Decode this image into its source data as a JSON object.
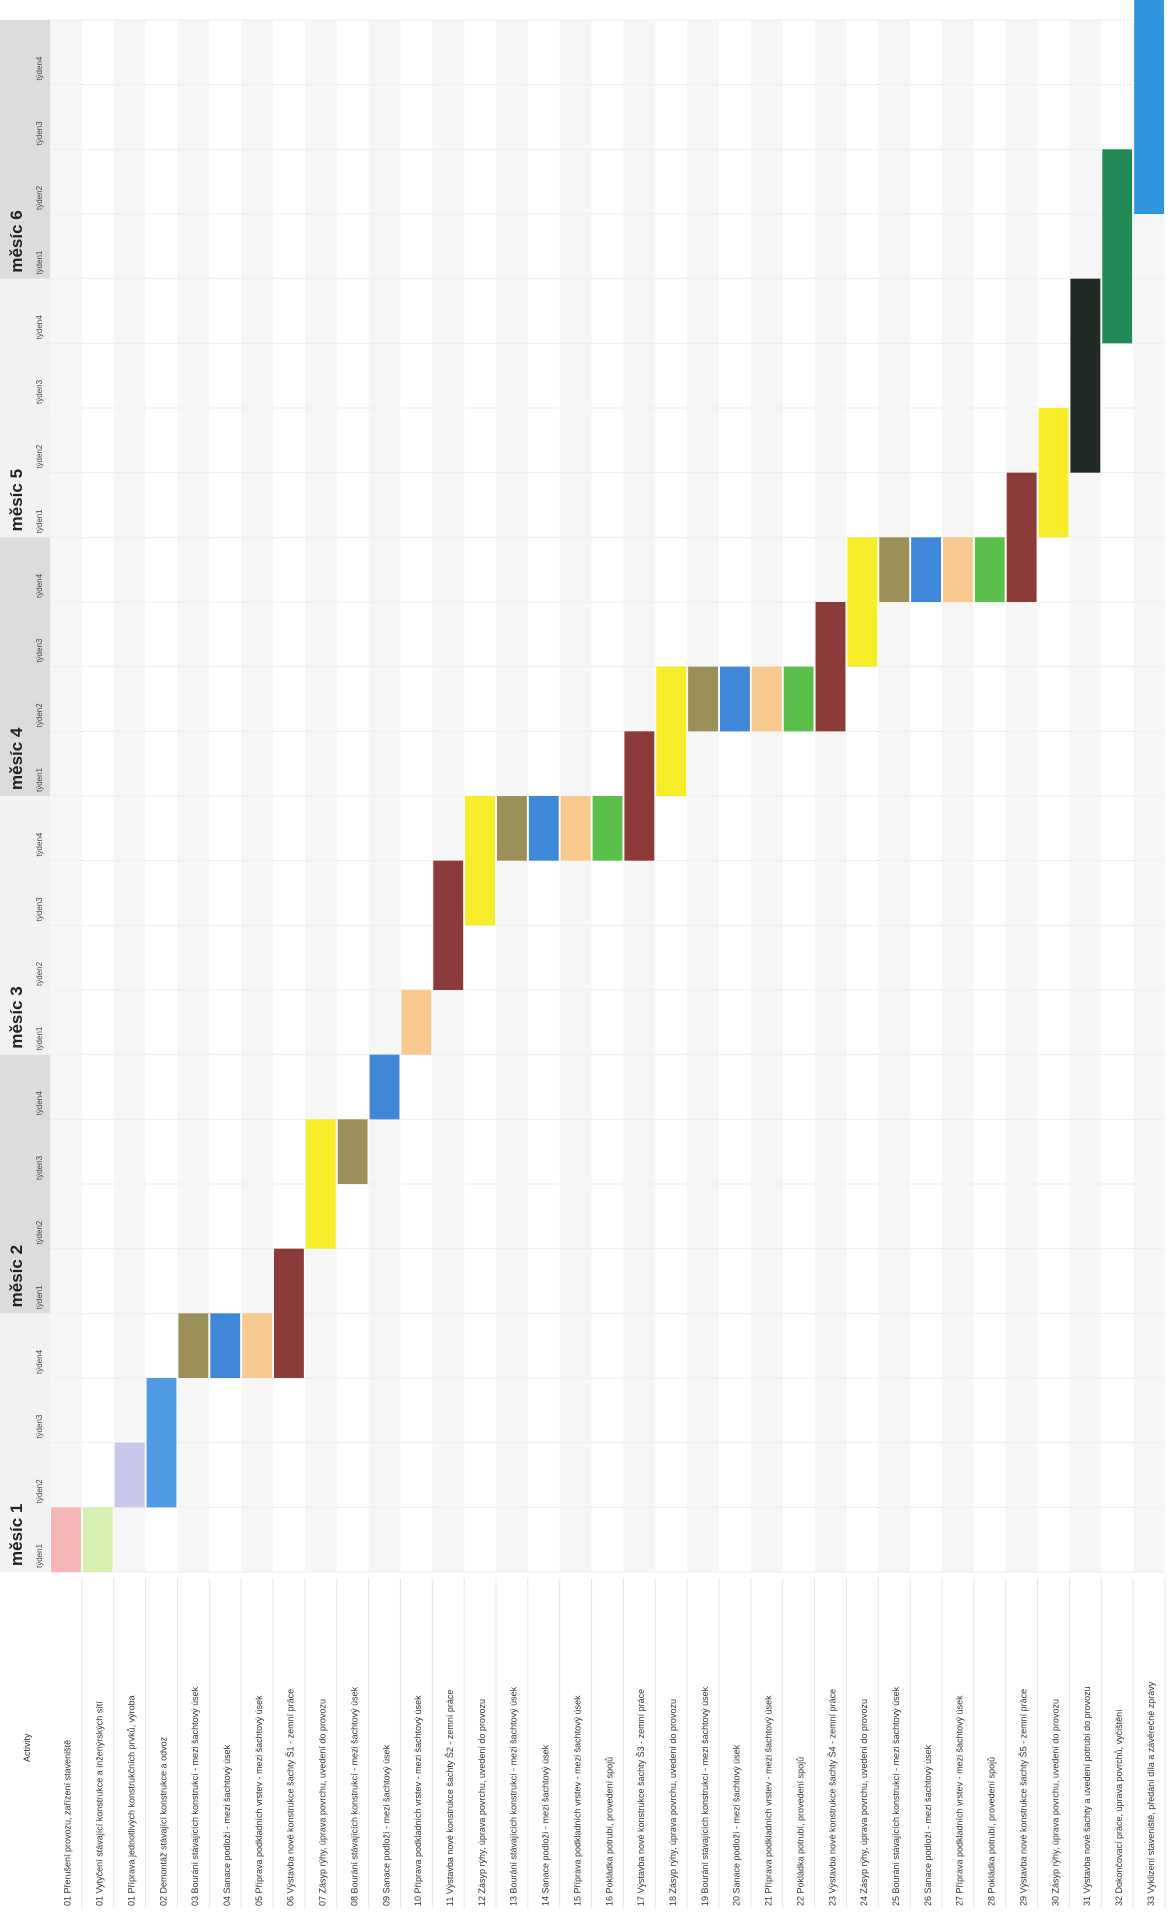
{
  "chart_data": {
    "type": "gantt",
    "header_label": "Activity",
    "months": [
      "měsíc 1",
      "měsíc 2",
      "měsíc 3",
      "měsíc 4",
      "měsíc 5",
      "měsíc 6"
    ],
    "week_labels": [
      "týden1",
      "týden2",
      "týden3",
      "týden4"
    ],
    "rows": [
      {
        "label": "01 Přerušení provozu, zařízení staveniště",
        "color": "#f4b6b6",
        "start": 0,
        "end": 1
      },
      {
        "label": "01 Vytyčení stávající konstrukce a inženýrských sítí",
        "color": "#d8efb2",
        "start": 0,
        "end": 1
      },
      {
        "label": "01 Příprava jednotlivých konstrukčních prvků, výroba",
        "color": "#c9c7ec",
        "start": 1,
        "end": 2
      },
      {
        "label": "02 Demontáž stávající konstrukce a odvoz",
        "color": "#4f9be3",
        "start": 1,
        "end": 3
      },
      {
        "label": "03 Bourání stávajících konstrukcí - mezi šachtový úsek",
        "color": "#9b8f5a",
        "start": 3,
        "end": 4
      },
      {
        "label": "04 Sanace podloží - mezi šachtový úsek",
        "color": "#3f87d8",
        "start": 3,
        "end": 4
      },
      {
        "label": "05 Příprava podkladních vrstev - mezi šachtový úsek",
        "color": "#f7c98f",
        "start": 3,
        "end": 4
      },
      {
        "label": "06 Výstavba nové konstrukce šachty Š1 - zemní práce",
        "color": "#8c3a3a",
        "start": 3,
        "end": 5
      },
      {
        "label": "07 Zásyp rýhy, úprava povrchu, uvedení do provozu",
        "color": "#f7ec2a",
        "start": 5,
        "end": 7
      },
      {
        "label": "08 Bourání stávajících konstrukcí - mezi šachtový úsek",
        "color": "#9b8f5a",
        "start": 6,
        "end": 7
      },
      {
        "label": "09 Sanace podloží - mezi šachtový úsek",
        "color": "#3f87d8",
        "start": 7,
        "end": 8
      },
      {
        "label": "10 Příprava podkladních vrstev - mezi šachtový úsek",
        "color": "#f7c98f",
        "start": 8,
        "end": 9
      },
      {
        "label": "11 Výstavba nové konstrukce šachty Š2 - zemní práce",
        "color": "#8c3a3a",
        "start": 9,
        "end": 11
      },
      {
        "label": "12 Zásyp rýhy, úprava povrchu, uvedení do provozu",
        "color": "#f7ec2a",
        "start": 10,
        "end": 12
      },
      {
        "label": "13 Bourání stávajících konstrukcí - mezi šachtový úsek",
        "color": "#9b8f5a",
        "start": 11,
        "end": 12
      },
      {
        "label": "14 Sanace podloží - mezi šachtový úsek",
        "color": "#3f87d8",
        "start": 11,
        "end": 12
      },
      {
        "label": "15 Příprava podkladních vrstev - mezi šachtový úsek",
        "color": "#f7c98f",
        "start": 11,
        "end": 12
      },
      {
        "label": "16 Pokládka potrubí, provedení spojů",
        "color": "#5bbf4c",
        "start": 11,
        "end": 12
      },
      {
        "label": "17 Výstavba nové konstrukce šachty Š3 - zemní práce",
        "color": "#8c3a3a",
        "start": 11,
        "end": 13
      },
      {
        "label": "18 Zásyp rýhy, úprava povrchu, uvedení do provozu",
        "color": "#f7ec2a",
        "start": 12,
        "end": 14
      },
      {
        "label": "19 Bourání stávajících konstrukcí - mezi šachtový úsek",
        "color": "#9b8f5a",
        "start": 13,
        "end": 14
      },
      {
        "label": "20 Sanace podloží - mezi šachtový úsek",
        "color": "#3f87d8",
        "start": 13,
        "end": 14
      },
      {
        "label": "21 Příprava podkladních vrstev - mezi šachtový úsek",
        "color": "#f7c98f",
        "start": 13,
        "end": 14
      },
      {
        "label": "22 Pokládka potrubí, provedení spojů",
        "color": "#5bbf4c",
        "start": 13,
        "end": 14
      },
      {
        "label": "23 Výstavba nové konstrukce šachty Š4 - zemní práce",
        "color": "#8c3a3a",
        "start": 13,
        "end": 15
      },
      {
        "label": "24 Zásyp rýhy, úprava povrchu, uvedení do provozu",
        "color": "#f7ec2a",
        "start": 14,
        "end": 16
      },
      {
        "label": "25 Bourání stávajících konstrukcí - mezi šachtový úsek",
        "color": "#9b8f5a",
        "start": 15,
        "end": 16
      },
      {
        "label": "26 Sanace podloží - mezi šachtový úsek",
        "color": "#3f87d8",
        "start": 15,
        "end": 16
      },
      {
        "label": "27 Příprava podkladních vrstev - mezi šachtový úsek",
        "color": "#f7c98f",
        "start": 15,
        "end": 16
      },
      {
        "label": "28 Pokládka potrubí, provedení spojů",
        "color": "#5bbf4c",
        "start": 15,
        "end": 16
      },
      {
        "label": "29 Výstavba nové konstrukce šachty Š5 - zemní práce",
        "color": "#8c3a3a",
        "start": 15,
        "end": 17
      },
      {
        "label": "30 Zásyp rýhy, úprava povrchu, uvedení do provozu",
        "color": "#f7ec2a",
        "start": 16,
        "end": 18
      },
      {
        "label": "31 Výstavba nové šachty a uvedení potrubí do provozu",
        "color": "#222a26",
        "start": 17,
        "end": 20
      },
      {
        "label": "32 Dokončovací práce, úprava povrchů, vyčištění",
        "color": "#238a55",
        "start": 19,
        "end": 22
      },
      {
        "label": "33 Vyklizení staveniště, předání díla a závěrečné zprávy",
        "color": "#2f95dd",
        "start": 21,
        "end": 30
      }
    ]
  }
}
